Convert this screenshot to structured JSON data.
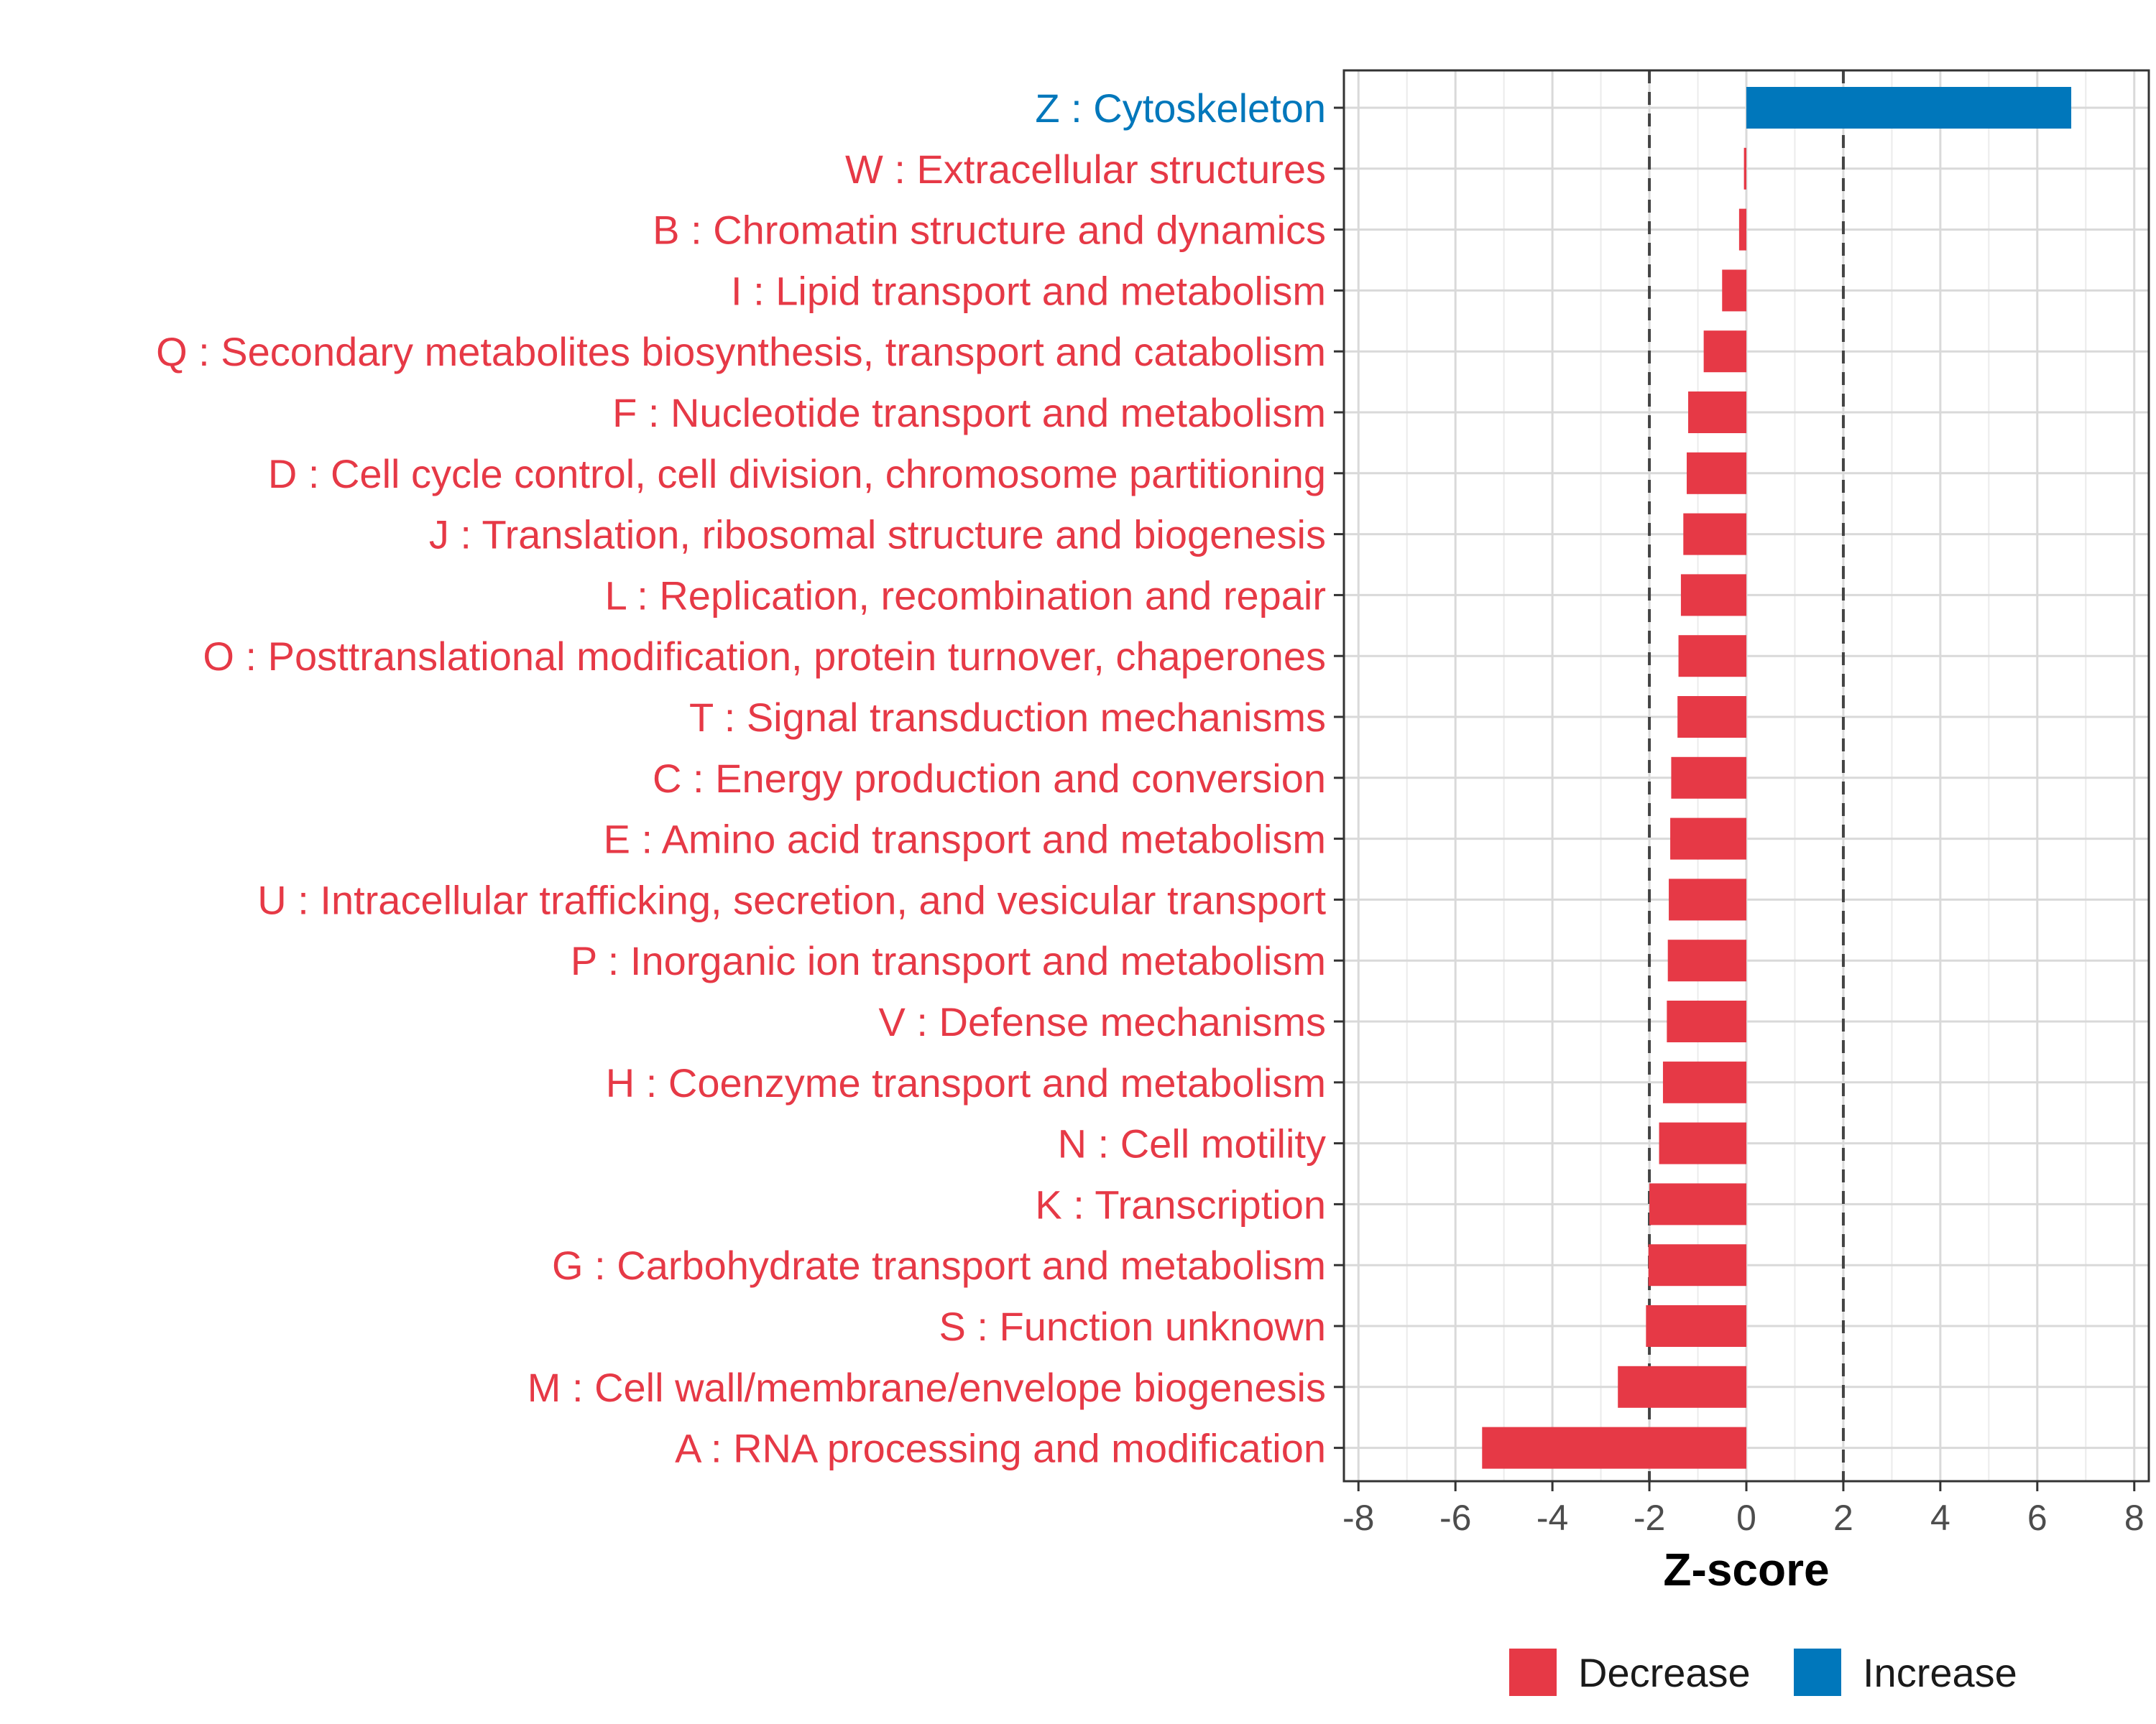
{
  "chart_data": {
    "type": "bar",
    "orientation": "horizontal",
    "xlabel": "Z-score",
    "xlim": [
      -8.3,
      8.3
    ],
    "x_ticks": [
      -8,
      -6,
      -4,
      -2,
      0,
      2,
      4,
      6,
      8
    ],
    "x_tick_labels": [
      "-8",
      "-6",
      "-4",
      "-2",
      "0",
      "2",
      "4",
      "6",
      "8"
    ],
    "threshold_lines": [
      -2,
      2
    ],
    "grid": true,
    "colors": {
      "Decrease": "#E63946",
      "Increase": "#0077BB"
    },
    "legend": {
      "placement": "bottom",
      "items": [
        {
          "label": "Decrease",
          "color": "#E63946"
        },
        {
          "label": "Increase",
          "color": "#0077BB"
        }
      ]
    },
    "categories": [
      "Z : Cytoskeleton",
      "W : Extracellular structures",
      "B : Chromatin structure and dynamics",
      "I : Lipid transport and metabolism",
      "Q : Secondary metabolites biosynthesis, transport and catabolism",
      "F : Nucleotide transport and metabolism",
      "D : Cell cycle control, cell division, chromosome partitioning",
      "J : Translation, ribosomal structure and biogenesis",
      "L : Replication, recombination and repair",
      "O : Posttranslational modification, protein turnover, chaperones",
      "T : Signal transduction mechanisms",
      "C : Energy production and conversion",
      "E : Amino acid transport and metabolism",
      "U : Intracellular trafficking, secretion, and vesicular transport",
      "P : Inorganic ion transport and metabolism",
      "V : Defense mechanisms",
      "H : Coenzyme transport and metabolism",
      "N : Cell motility",
      "K : Transcription",
      "G : Carbohydrate transport and metabolism",
      "S : Function unknown",
      "M : Cell wall/membrane/envelope biogenesis",
      "A : RNA processing and modification"
    ],
    "values": [
      6.7,
      -0.05,
      -0.15,
      -0.5,
      -0.88,
      -1.2,
      -1.23,
      -1.3,
      -1.35,
      -1.4,
      -1.42,
      -1.55,
      -1.57,
      -1.6,
      -1.62,
      -1.64,
      -1.72,
      -1.8,
      -2.0,
      -2.02,
      -2.07,
      -2.65,
      -5.45
    ],
    "groups": [
      "Increase",
      "Decrease",
      "Decrease",
      "Decrease",
      "Decrease",
      "Decrease",
      "Decrease",
      "Decrease",
      "Decrease",
      "Decrease",
      "Decrease",
      "Decrease",
      "Decrease",
      "Decrease",
      "Decrease",
      "Decrease",
      "Decrease",
      "Decrease",
      "Decrease",
      "Decrease",
      "Decrease",
      "Decrease",
      "Decrease"
    ]
  }
}
